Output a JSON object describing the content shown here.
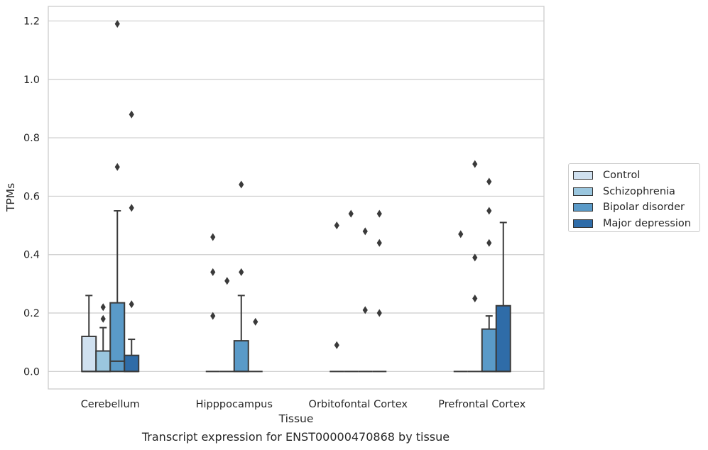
{
  "caption": "Transcript expression for ENST00000470868 by tissue",
  "chart_data": {
    "type": "box",
    "xlabel": "Tissue",
    "ylabel": "TPMs",
    "ylim": [
      -0.06,
      1.25
    ],
    "yticks": [
      "0.0",
      "0.2",
      "0.4",
      "0.6",
      "0.8",
      "1.0",
      "1.2"
    ],
    "grid": true,
    "legend_position": "right",
    "categories": [
      "Cerebellum",
      "Hipppocampus",
      "Orbitofontal Cortex",
      "Prefrontal Cortex"
    ],
    "series": [
      {
        "name": "Control",
        "color": "#d0e1f0",
        "boxes": [
          {
            "whislo": 0,
            "q1": 0,
            "med": 0,
            "q3": 0.12,
            "whishi": 0.26,
            "fliers": []
          },
          {
            "whislo": 0,
            "q1": 0,
            "med": 0,
            "q3": 0,
            "whishi": 0,
            "fliers": [
              0.46,
              0.34,
              0.19
            ]
          },
          {
            "whislo": 0,
            "q1": 0,
            "med": 0,
            "q3": 0,
            "whishi": 0,
            "fliers": [
              0.5,
              0.09
            ]
          },
          {
            "whislo": 0,
            "q1": 0,
            "med": 0,
            "q3": 0,
            "whishi": 0,
            "fliers": [
              0.47
            ]
          }
        ]
      },
      {
        "name": "Schizophrenia",
        "color": "#9ac6de",
        "boxes": [
          {
            "whislo": 0,
            "q1": 0,
            "med": 0,
            "q3": 0.07,
            "whishi": 0.15,
            "fliers": [
              0.22,
              0.18
            ]
          },
          {
            "whislo": 0,
            "q1": 0,
            "med": 0,
            "q3": 0,
            "whishi": 0,
            "fliers": [
              0.31
            ]
          },
          {
            "whislo": 0,
            "q1": 0,
            "med": 0,
            "q3": 0,
            "whishi": 0,
            "fliers": [
              0.54
            ]
          },
          {
            "whislo": 0,
            "q1": 0,
            "med": 0,
            "q3": 0,
            "whishi": 0,
            "fliers": [
              0.71,
              0.39,
              0.25
            ]
          }
        ]
      },
      {
        "name": "Bipolar disorder",
        "color": "#5a9ac8",
        "boxes": [
          {
            "whislo": 0,
            "q1": 0,
            "med": 0.035,
            "q3": 0.235,
            "whishi": 0.55,
            "fliers": [
              1.19,
              0.7
            ]
          },
          {
            "whislo": 0,
            "q1": 0,
            "med": 0,
            "q3": 0.105,
            "whishi": 0.26,
            "fliers": [
              0.64,
              0.34
            ]
          },
          {
            "whislo": 0,
            "q1": 0,
            "med": 0,
            "q3": 0,
            "whishi": 0,
            "fliers": [
              0.48,
              0.21
            ]
          },
          {
            "whislo": 0,
            "q1": 0,
            "med": 0,
            "q3": 0.145,
            "whishi": 0.19,
            "fliers": [
              0.65,
              0.55,
              0.44
            ]
          }
        ]
      },
      {
        "name": "Major depression",
        "color": "#2f6ca8",
        "boxes": [
          {
            "whislo": 0,
            "q1": 0,
            "med": 0,
            "q3": 0.055,
            "whishi": 0.11,
            "fliers": [
              0.88,
              0.56,
              0.23
            ]
          },
          {
            "whislo": 0,
            "q1": 0,
            "med": 0,
            "q3": 0,
            "whishi": 0,
            "fliers": [
              0.17
            ]
          },
          {
            "whislo": 0,
            "q1": 0,
            "med": 0,
            "q3": 0,
            "whishi": 0,
            "fliers": [
              0.54,
              0.44,
              0.2
            ]
          },
          {
            "whislo": 0,
            "q1": 0,
            "med": 0,
            "q3": 0.225,
            "whishi": 0.51,
            "fliers": []
          }
        ]
      }
    ]
  }
}
